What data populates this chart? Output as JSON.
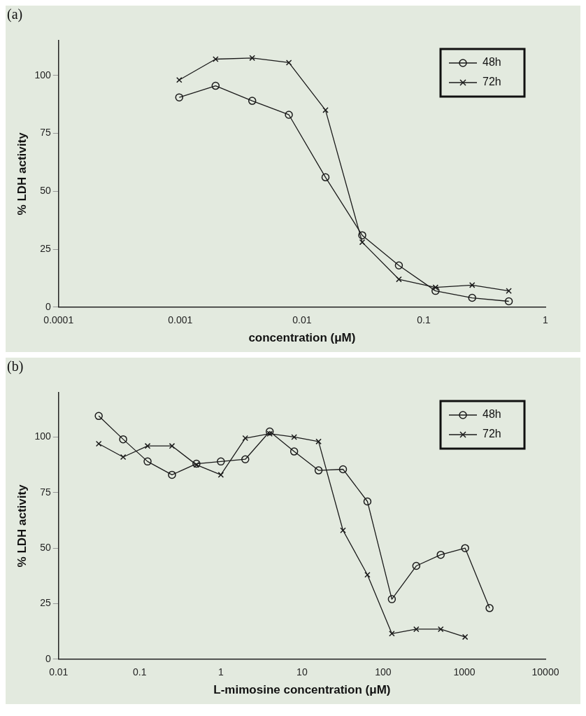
{
  "chart_data": [
    {
      "type": "line",
      "title": "(a)",
      "xlabel": "concentration (μM)",
      "ylabel": "% LDH activity",
      "log": "x",
      "xlim": [
        0.0001,
        1
      ],
      "xticks": [
        0.0001,
        0.001,
        0.01,
        0.1,
        1
      ],
      "ylim": [
        0,
        115
      ],
      "yticks": [
        0,
        25,
        50,
        75,
        100
      ],
      "legend": "top right",
      "grid": false,
      "x": [
        0.00098,
        0.00195,
        0.0039,
        0.0078,
        0.0156,
        0.03125,
        0.0625,
        0.125,
        0.25,
        0.5
      ],
      "series": [
        {
          "name": "48h",
          "color": "#1a1a1a",
          "marker": "circle",
          "values": [
            90.5,
            95.5,
            89,
            83,
            56,
            31,
            18,
            7,
            4,
            2.5
          ]
        },
        {
          "name": "72h",
          "color": "#1a1a1a",
          "marker": "cross",
          "values": [
            98,
            107,
            107.5,
            105.5,
            85,
            28,
            12,
            8.5,
            9.5,
            7
          ]
        }
      ]
    },
    {
      "type": "line",
      "title": "(b)",
      "xlabel": "L-mimosine concentration (μM)",
      "ylabel": "% LDH activity",
      "log": "x",
      "xlim": [
        0.01,
        10000
      ],
      "xticks": [
        0.01,
        0.1,
        1,
        10,
        100,
        1000,
        10000
      ],
      "ylim": [
        0,
        120
      ],
      "yticks": [
        0,
        25,
        50,
        75,
        100
      ],
      "legend": "top right",
      "grid": false,
      "x": [
        0.03125,
        0.0625,
        0.125,
        0.25,
        0.5,
        1,
        2,
        4,
        8,
        16,
        32,
        64,
        128,
        256,
        512,
        1024,
        2048
      ],
      "series": [
        {
          "name": "48h",
          "color": "#1a1a1a",
          "marker": "circle",
          "values": [
            109.5,
            99,
            89,
            83,
            88,
            89,
            90,
            102.5,
            93.5,
            85,
            85.5,
            71,
            27,
            42,
            47,
            50,
            23
          ]
        },
        {
          "name": "72h",
          "color": "#1a1a1a",
          "marker": "cross",
          "values": [
            97,
            91,
            96,
            96,
            87.5,
            83,
            99.5,
            101.5,
            100,
            98,
            58,
            38,
            11.5,
            13.5,
            13.5,
            10,
            null
          ]
        }
      ]
    }
  ]
}
